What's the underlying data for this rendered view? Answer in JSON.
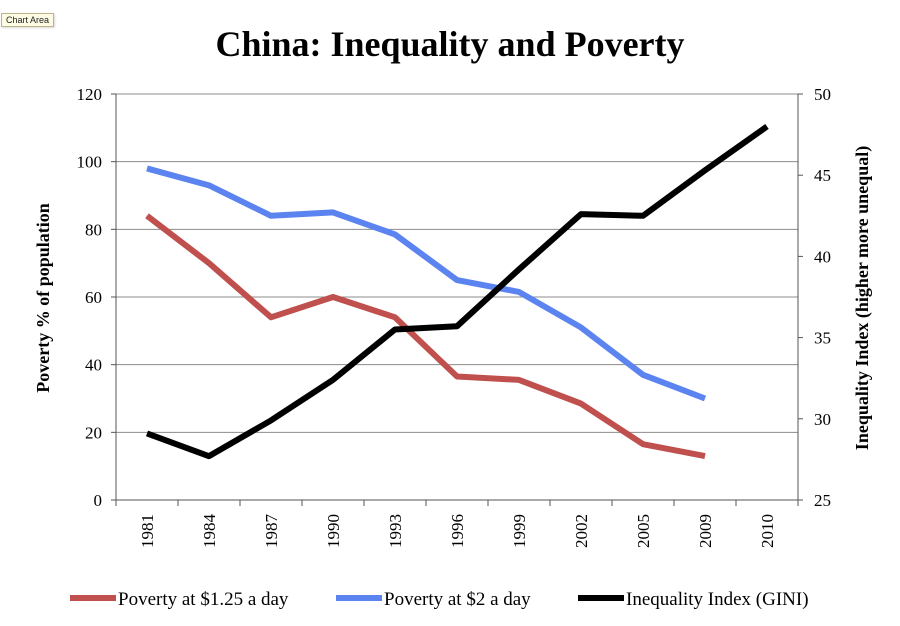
{
  "tooltip": "Chart Area",
  "chart_data": {
    "type": "line",
    "title": "China: Inequality and Poverty",
    "xlabel": "",
    "ylabel_left": "Poverty % of population",
    "ylabel_right": "Inequality Index (higher more unequal)",
    "ylim_left": [
      0,
      120
    ],
    "yticks_left": [
      "0",
      "20",
      "40",
      "60",
      "80",
      "100",
      "120"
    ],
    "ylim_right": [
      25,
      50
    ],
    "yticks_right": [
      "25",
      "30",
      "35",
      "40",
      "45",
      "50"
    ],
    "categories": [
      "1981",
      "1984",
      "1987",
      "1990",
      "1993",
      "1996",
      "1999",
      "2002",
      "2005",
      "2009",
      "2010"
    ],
    "grid": true,
    "legend_position": "bottom",
    "series": [
      {
        "name": "Poverty at $1.25 a day",
        "axis": "left",
        "color": "#c0504d",
        "values": [
          84,
          70,
          54,
          60,
          54,
          36.5,
          35.5,
          28.5,
          16.5,
          13,
          null
        ]
      },
      {
        "name": "Poverty at $2 a day",
        "axis": "left",
        "color": "#5b84f0",
        "values": [
          98,
          93,
          84,
          85,
          78.5,
          65,
          61.5,
          51,
          37,
          30,
          null
        ]
      },
      {
        "name": "Inequality Index (GINI)",
        "axis": "right",
        "color": "#000000",
        "values": [
          29.1,
          27.7,
          29.9,
          32.4,
          35.5,
          35.7,
          39.2,
          42.6,
          42.5,
          45.3,
          48
        ]
      }
    ]
  }
}
